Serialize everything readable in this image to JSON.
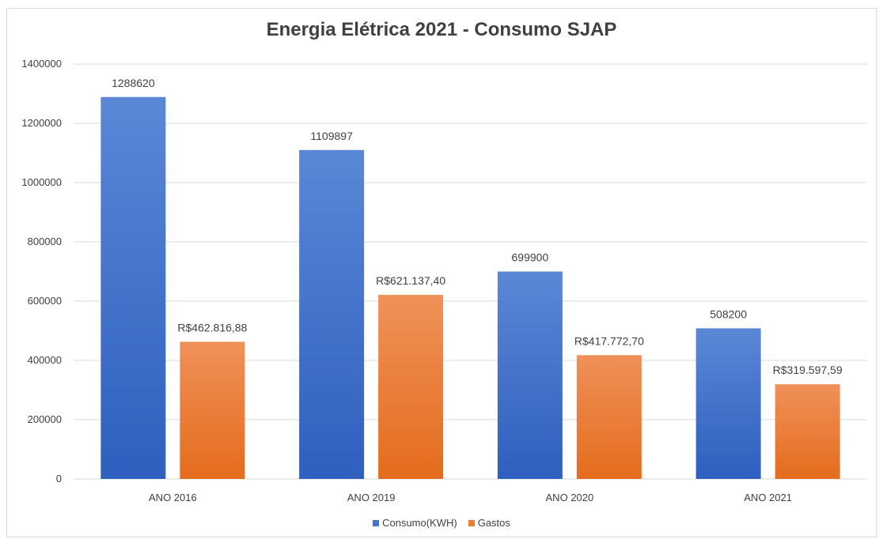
{
  "chart_data": {
    "type": "bar",
    "title": "Energia Elétrica 2021 - Consumo SJAP",
    "xlabel": "",
    "ylabel": "",
    "categories": [
      "ANO 2016",
      "ANO 2019",
      "ANO 2020",
      "ANO 2021"
    ],
    "series": [
      {
        "name": "Consumo(KWH)",
        "color": "#4472c4",
        "values": [
          1288620,
          1109897,
          699900,
          508200
        ],
        "labels": [
          "1288620",
          "1109897",
          "699900",
          "508200"
        ]
      },
      {
        "name": "Gastos",
        "color": "#ed7d31",
        "values": [
          462816.88,
          621137.4,
          417772.7,
          319597.59
        ],
        "labels": [
          "R$462.816,88",
          "R$621.137,40",
          "R$417.772,70",
          "R$319.597,59"
        ]
      }
    ],
    "ylim": [
      0,
      1400000
    ],
    "yticks": [
      "0",
      "200000",
      "400000",
      "600000",
      "800000",
      "1000000",
      "1200000",
      "1400000"
    ],
    "grid": true,
    "legend_position": "bottom"
  }
}
